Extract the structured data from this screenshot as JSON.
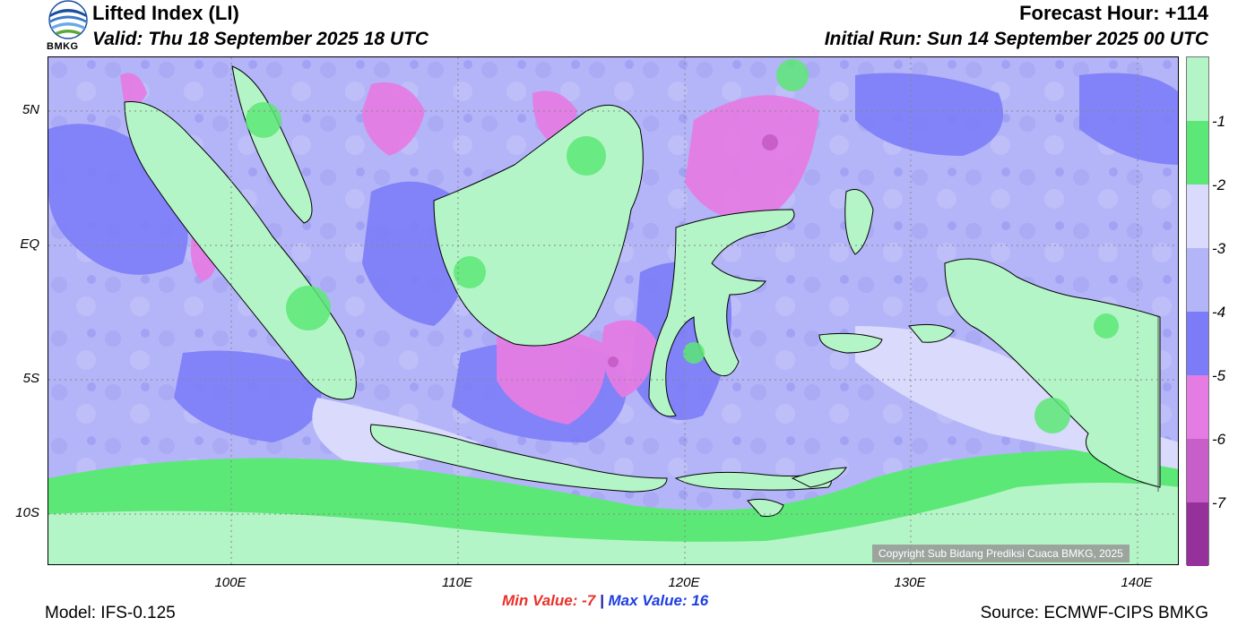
{
  "header": {
    "title": "Lifted Index (LI)",
    "valid": "Valid: Thu 18 September 2025 18 UTC",
    "forecast_hour": "Forecast Hour: +114",
    "initial_run": "Initial Run: Sun 14 September 2025 00 UTC"
  },
  "logo": {
    "text": "BMKG",
    "icon": "bmkg-logo-icon"
  },
  "map": {
    "latitude_labels": [
      "5N",
      "EQ",
      "5S",
      "10S"
    ],
    "longitude_labels": [
      "100E",
      "110E",
      "120E",
      "130E",
      "140E"
    ],
    "ocean_color": "#b4b4f8",
    "land_border_color": "#000000",
    "copyright": "Copyright Sub Bidang Prediksi Cuaca BMKG, 2025"
  },
  "colorbar": {
    "tick_labels": [
      "-1",
      "-2",
      "-3",
      "-4",
      "-5",
      "-6",
      "-7"
    ],
    "colors": [
      "#b4f5c8",
      "#5ce876",
      "#dadafc",
      "#b4b4f8",
      "#7c7cf8",
      "#e47ce4",
      "#c85ec8",
      "#96309a"
    ]
  },
  "footer": {
    "model": "Model: IFS-0.125",
    "min_label": "Min Value:  -7",
    "separator": "|",
    "max_label": "Max Value:  16",
    "source": "Source: ECMWF-CIPS BMKG"
  }
}
